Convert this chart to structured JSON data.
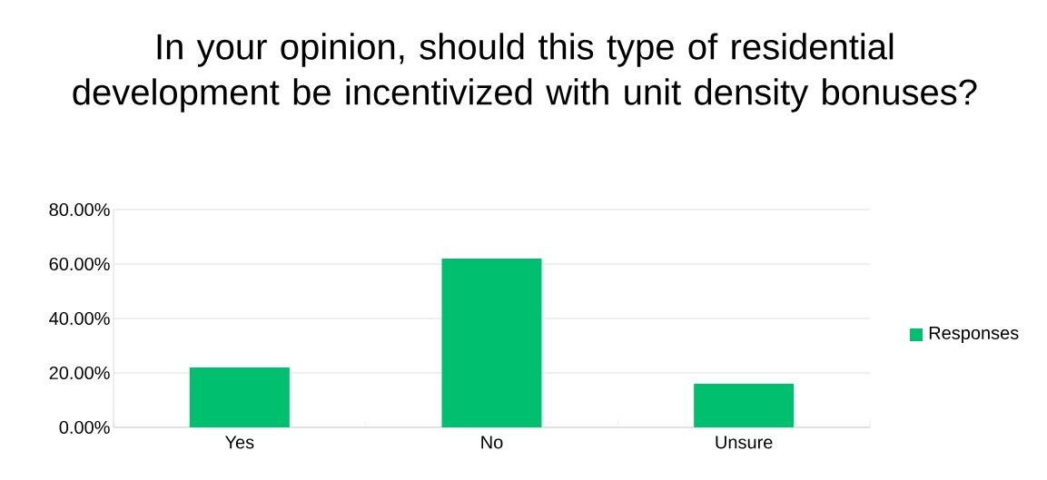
{
  "chart_data": {
    "type": "bar",
    "title": "In your opinion, should this type of residential development be incentivized with unit density bonuses?",
    "categories": [
      "Yes",
      "No",
      "Unsure"
    ],
    "series": [
      {
        "name": "Responses",
        "color": "#00bf6f",
        "values": [
          22,
          62,
          16
        ]
      }
    ],
    "ylim": [
      0,
      80
    ],
    "yticks": [
      {
        "value": 0,
        "label": "0.00%"
      },
      {
        "value": 20,
        "label": "20.00%"
      },
      {
        "value": 40,
        "label": "40.00%"
      },
      {
        "value": 60,
        "label": "60.00%"
      },
      {
        "value": 80,
        "label": "80.00%"
      }
    ],
    "grid": "y",
    "legend": "right"
  }
}
